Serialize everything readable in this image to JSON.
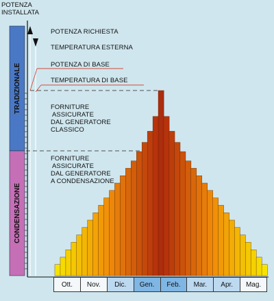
{
  "y_axis_label": [
    "POTENZA",
    "INSTALLATA"
  ],
  "legend": {
    "potenza_richiesta": "POTENZA RICHIESTA",
    "temperatura_esterna": "TEMPERATURA ESTERNA",
    "potenza_di_base": "POTENZA DI BASE",
    "temperatura_di_base": "TEMPERATURA DI BASE"
  },
  "annotations": {
    "classico": [
      "FORNITURE",
      "ASSICURATE",
      "DAL GENERATORE",
      "CLASSICO"
    ],
    "condensazione": [
      "FORNITURE",
      "ASSICURATE",
      "DAL GENERATORE",
      "A CONDENSAZIONE"
    ]
  },
  "bands": {
    "tradizionale": {
      "label": "TRADIZIONALE",
      "color": "#4a78c4"
    },
    "condensazione": {
      "label": "CONDENSAZIONE",
      "color": "#c56fb6"
    }
  },
  "months": [
    "Ott.",
    "Nov.",
    "Dic.",
    "Gen.",
    "Feb.",
    "Mar.",
    "Apr.",
    "Mag."
  ],
  "chart_data": {
    "type": "bar",
    "x_categories": [
      "Ott.",
      "Nov.",
      "Dic.",
      "Gen.",
      "Feb.",
      "Mar.",
      "Apr.",
      "Mag."
    ],
    "description_values_relative": [
      0.06,
      0.1,
      0.14,
      0.18,
      0.22,
      0.26,
      0.3,
      0.34,
      0.38,
      0.42,
      0.46,
      0.5,
      0.54,
      0.58,
      0.62,
      0.67,
      0.72,
      0.78,
      0.86,
      1.0,
      0.86,
      0.78,
      0.72,
      0.67,
      0.62,
      0.58,
      0.54,
      0.5,
      0.46,
      0.42,
      0.38,
      0.34,
      0.3,
      0.26,
      0.22,
      0.18,
      0.14,
      0.1,
      0.06
    ],
    "base_power_level_relative": 0.64,
    "colors": {
      "low": "#f6e400",
      "high": "#b83a10"
    }
  }
}
